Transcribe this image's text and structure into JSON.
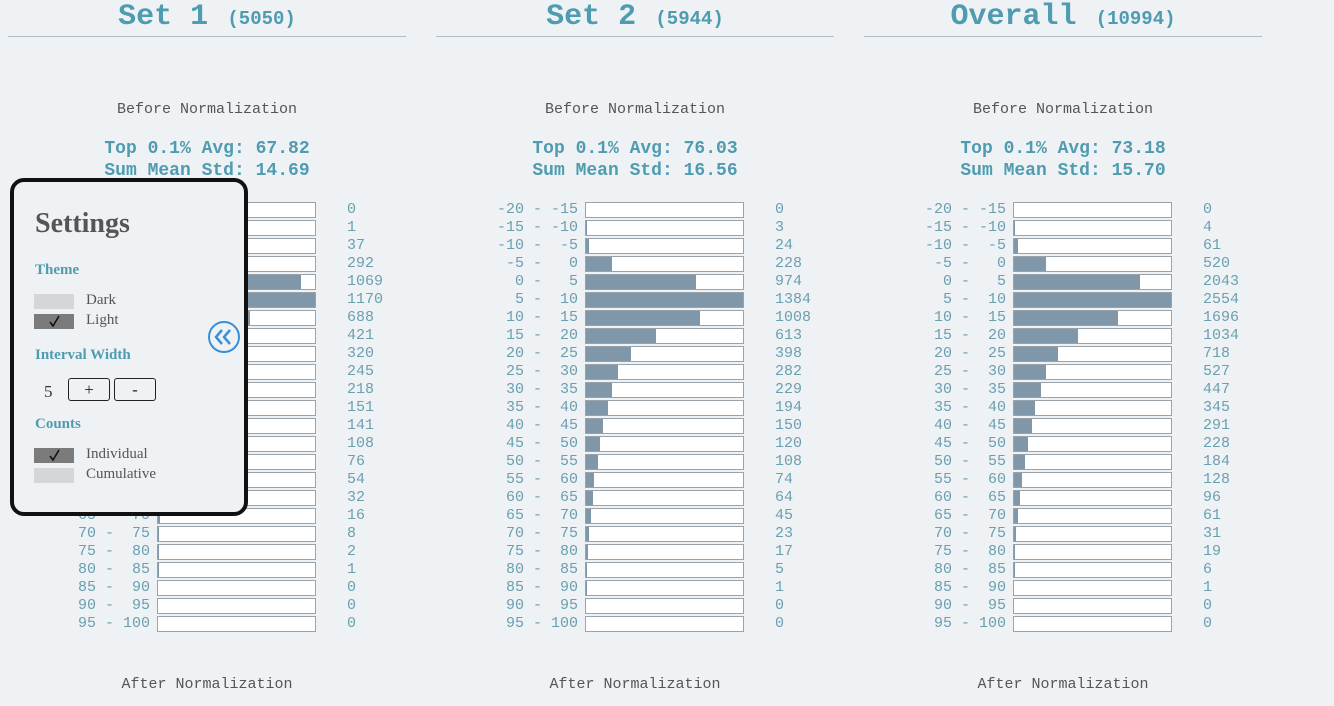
{
  "sets": [
    {
      "title": "Set 1",
      "count_label": "(5050)",
      "before_heading": "Before Normalization",
      "top_label": "Top 0.1% Avg:",
      "top_value": "67.82",
      "std_label": "Sum Mean Std:",
      "std_value": "14.69",
      "counts": [
        0,
        1,
        37,
        292,
        1069,
        1170,
        688,
        421,
        320,
        245,
        218,
        151,
        141,
        108,
        76,
        54,
        32,
        16,
        8,
        2,
        1,
        0,
        0,
        0
      ],
      "after_heading": "After Normalization"
    },
    {
      "title": "Set 2",
      "count_label": "(5944)",
      "before_heading": "Before Normalization",
      "top_label": "Top 0.1% Avg:",
      "top_value": "76.03",
      "std_label": "Sum Mean Std:",
      "std_value": "16.56",
      "counts": [
        0,
        3,
        24,
        228,
        974,
        1384,
        1008,
        613,
        398,
        282,
        229,
        194,
        150,
        120,
        108,
        74,
        64,
        45,
        23,
        17,
        5,
        1,
        0,
        0
      ],
      "after_heading": "After Normalization"
    },
    {
      "title": "Overall",
      "count_label": "(10994)",
      "before_heading": "Before Normalization",
      "top_label": "Top 0.1% Avg:",
      "top_value": "73.18",
      "std_label": "Sum Mean Std:",
      "std_value": "15.70",
      "counts": [
        0,
        4,
        61,
        520,
        2043,
        2554,
        1696,
        1034,
        718,
        527,
        447,
        345,
        291,
        228,
        184,
        128,
        96,
        61,
        31,
        19,
        6,
        1,
        0,
        0
      ],
      "after_heading": "After Normalization"
    }
  ],
  "intervals": [
    {
      "from": -20,
      "to": -15
    },
    {
      "from": -15,
      "to": -10
    },
    {
      "from": -10,
      "to": -5
    },
    {
      "from": -5,
      "to": 0
    },
    {
      "from": 0,
      "to": 5
    },
    {
      "from": 5,
      "to": 10
    },
    {
      "from": 10,
      "to": 15
    },
    {
      "from": 15,
      "to": 20
    },
    {
      "from": 20,
      "to": 25
    },
    {
      "from": 25,
      "to": 30
    },
    {
      "from": 30,
      "to": 35
    },
    {
      "from": 35,
      "to": 40
    },
    {
      "from": 40,
      "to": 45
    },
    {
      "from": 45,
      "to": 50
    },
    {
      "from": 50,
      "to": 55
    },
    {
      "from": 55,
      "to": 60
    },
    {
      "from": 60,
      "to": 65
    },
    {
      "from": 65,
      "to": 70
    },
    {
      "from": 70,
      "to": 75
    },
    {
      "from": 75,
      "to": 80
    },
    {
      "from": 80,
      "to": 85
    },
    {
      "from": 85,
      "to": 90
    },
    {
      "from": 90,
      "to": 95
    },
    {
      "from": 95,
      "to": 100
    }
  ],
  "range_separator": "-",
  "settings": {
    "title": "Settings",
    "theme": {
      "heading": "Theme",
      "options": [
        {
          "label": "Dark",
          "checked": false
        },
        {
          "label": "Light",
          "checked": true
        }
      ]
    },
    "interval_width": {
      "heading": "Interval Width",
      "value": 5,
      "buttons": [
        "+",
        "-"
      ]
    },
    "counts": {
      "heading": "Counts",
      "options": [
        {
          "label": "Individual",
          "checked": true
        },
        {
          "label": "Cumulative",
          "checked": false
        }
      ]
    }
  }
}
